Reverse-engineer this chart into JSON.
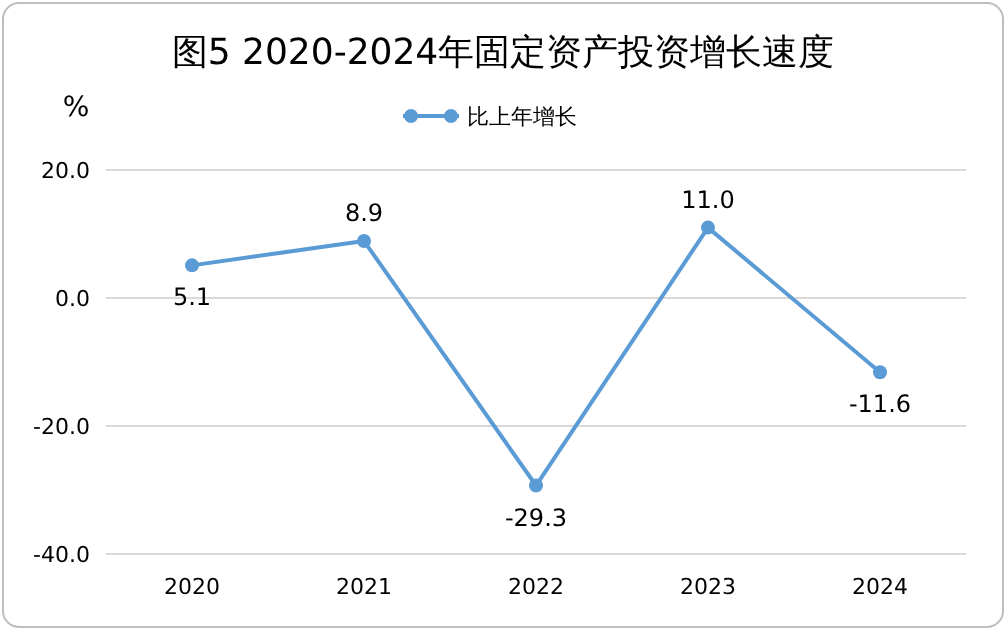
{
  "chart_data": {
    "type": "line",
    "title": "图5  2020-2024年固定资产投资增长速度",
    "ylabel": "%",
    "categories": [
      "2020",
      "2021",
      "2022",
      "2023",
      "2024"
    ],
    "series": [
      {
        "name": "比上年增长",
        "color": "#5b9bd5",
        "values": [
          5.1,
          8.9,
          -29.3,
          11.0,
          -11.6
        ],
        "value_labels": [
          "5.1",
          "8.9",
          "-29.3",
          "11.0",
          "-11.6"
        ]
      }
    ],
    "ylim": [
      -40,
      20
    ],
    "yticks": [
      {
        "value": -40,
        "label": "-40.0"
      },
      {
        "value": -20,
        "label": "-20.0"
      },
      {
        "value": 0,
        "label": "0.0"
      },
      {
        "value": 20,
        "label": "20.0"
      }
    ],
    "grid": "y",
    "legend": "top",
    "marker": "circle",
    "line_style": "solid"
  }
}
